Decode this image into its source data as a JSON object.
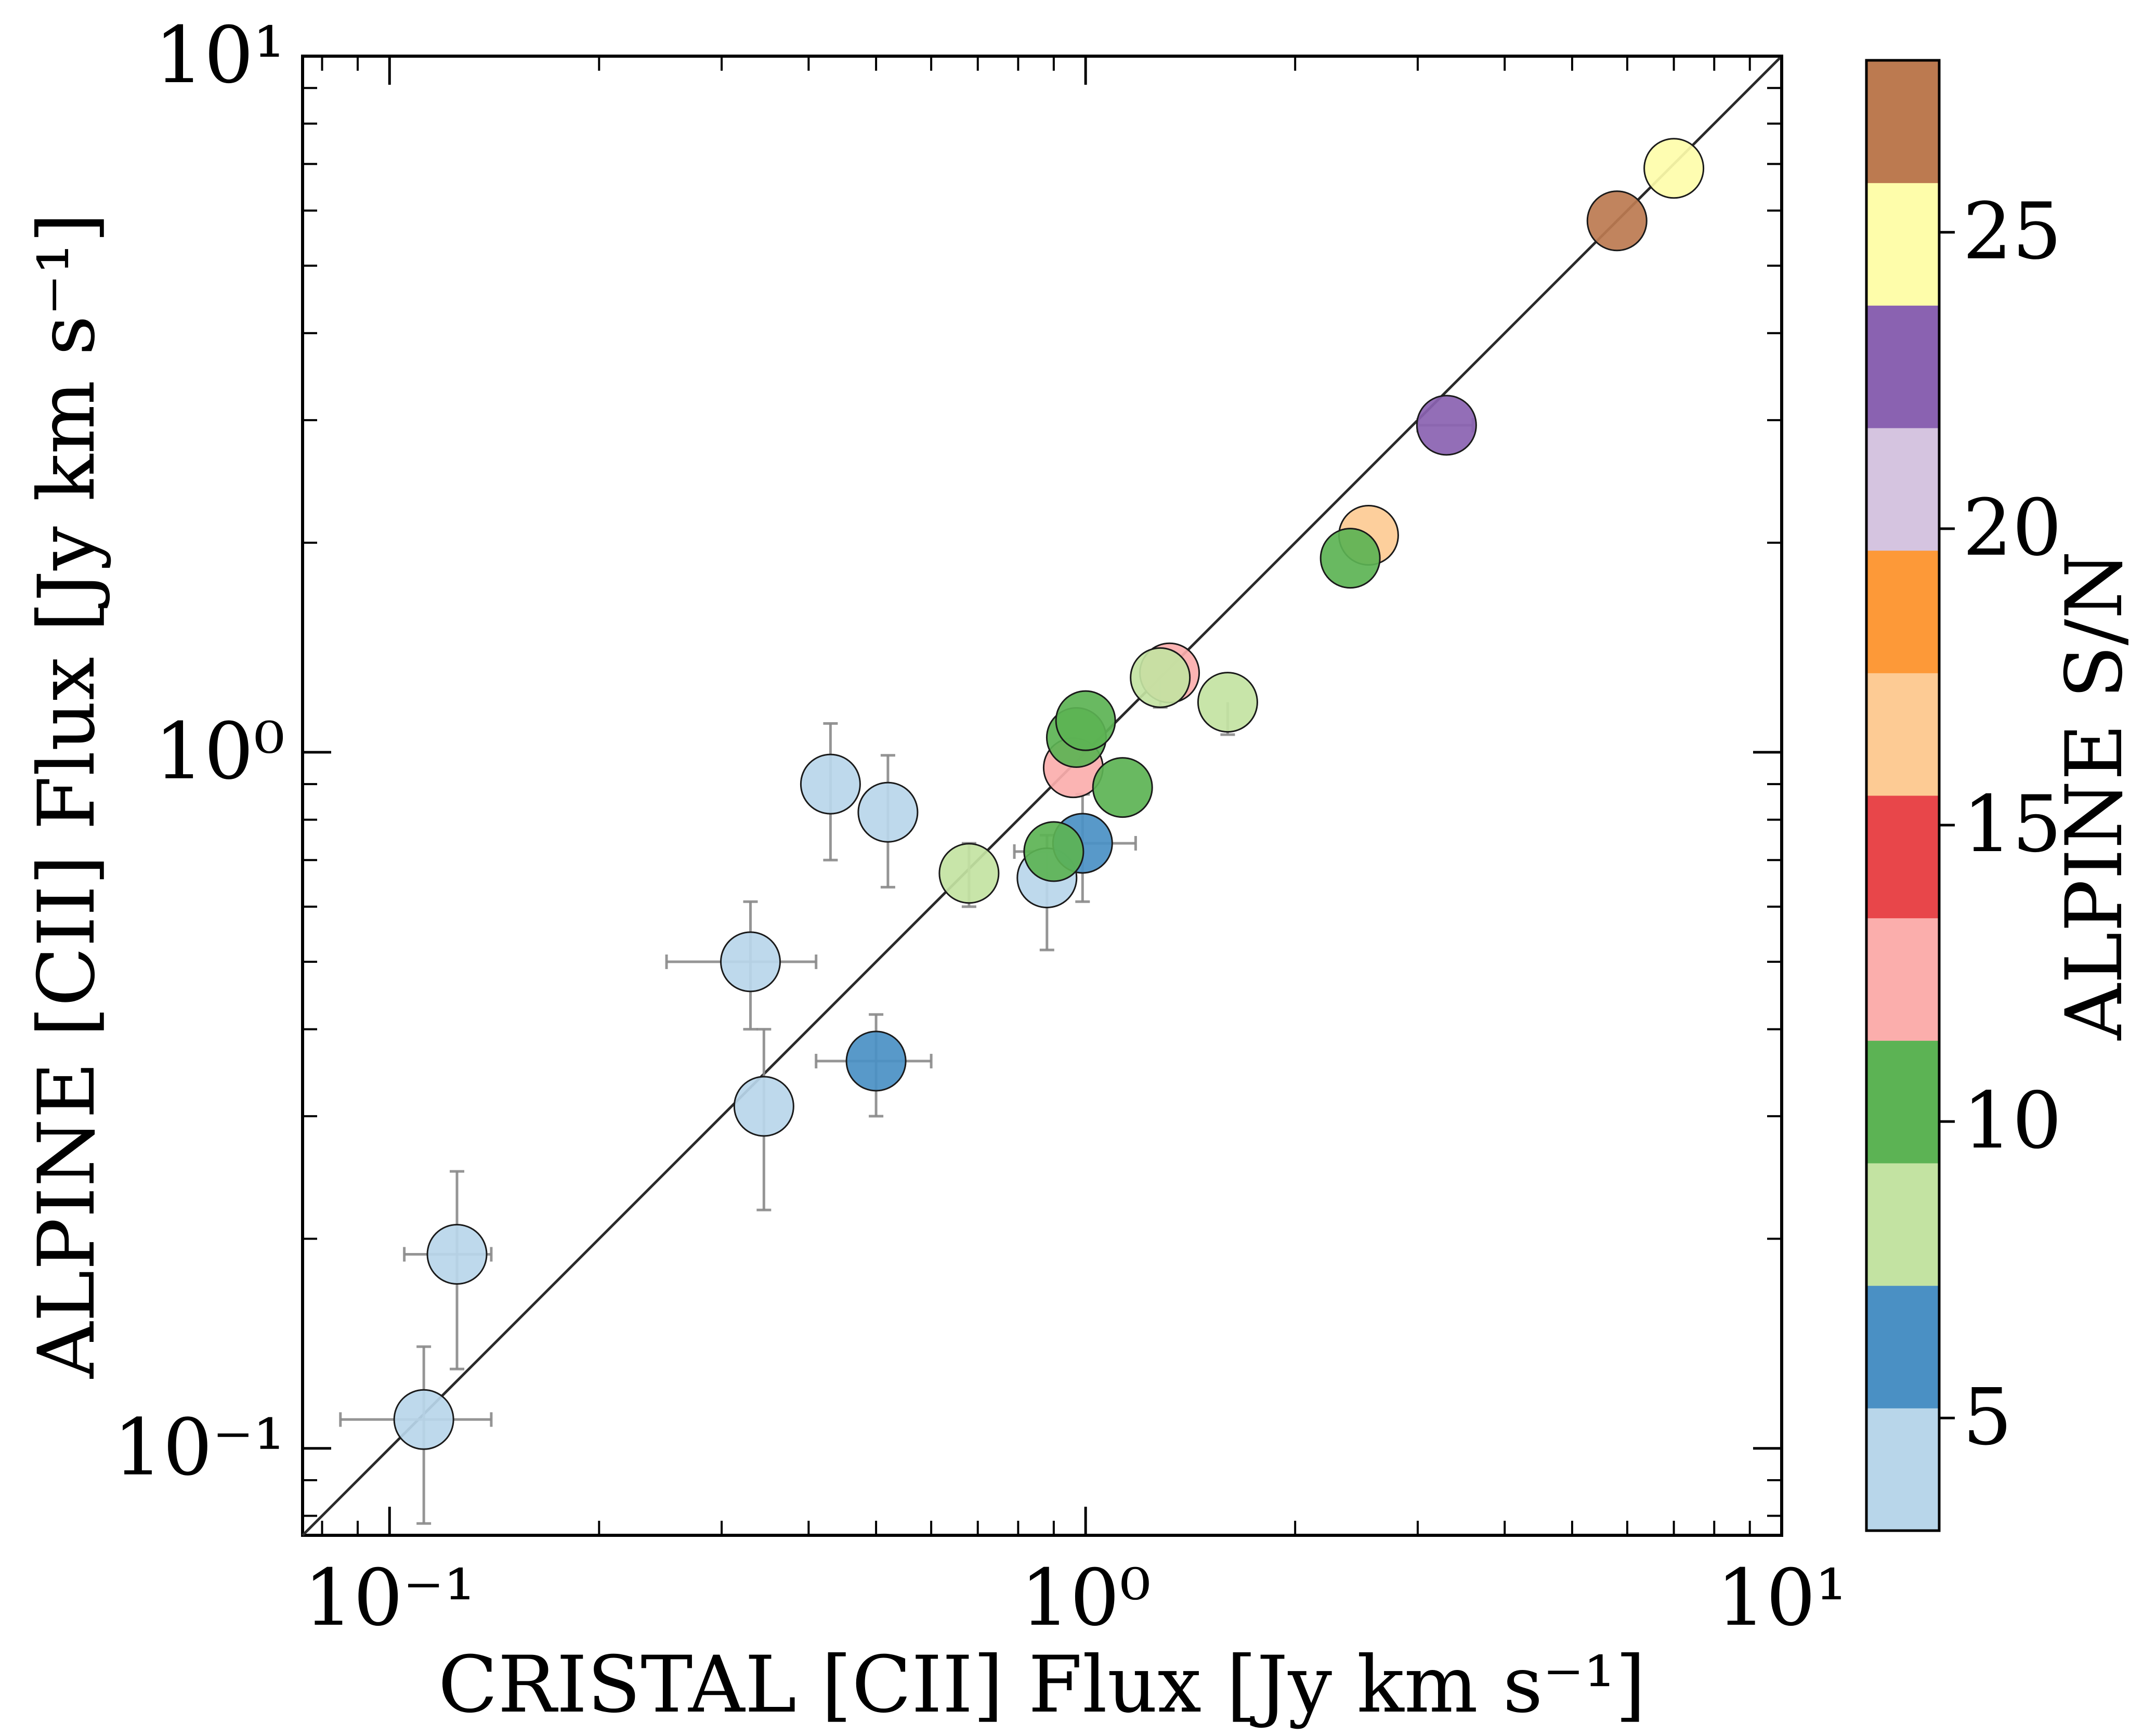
{
  "chart_data": {
    "type": "scatter",
    "xlabel": "CRISTAL [CII] Flux [Jy km s⁻¹]",
    "ylabel": "ALPINE [CII] Flux [Jy km s⁻¹]",
    "xscale": "log",
    "yscale": "log",
    "xlim": [
      0.075,
      10
    ],
    "ylim": [
      0.075,
      10
    ],
    "x_ticks": [
      {
        "value": 0.1,
        "label": "10⁻¹"
      },
      {
        "value": 1,
        "label": "10⁰"
      },
      {
        "value": 10,
        "label": "10¹"
      }
    ],
    "y_ticks": [
      {
        "value": 0.1,
        "label": "10⁻¹"
      },
      {
        "value": 1,
        "label": "10⁰"
      },
      {
        "value": 10,
        "label": "10¹"
      }
    ],
    "one_to_one_line": true,
    "grid": false,
    "colorbar": {
      "label": "ALPINE S/N",
      "range": [
        3.1,
        27.9
      ],
      "ticks": [
        5,
        10,
        15,
        20,
        25
      ],
      "tick_labels": [
        "5",
        "10",
        "15",
        "20",
        "25"
      ],
      "colors": [
        "#b8d6ea",
        "#4a90c4",
        "#c3e3a2",
        "#5cb354",
        "#fbaeac",
        "#e8464a",
        "#fdcb94",
        "#fd9938",
        "#d5c4e0",
        "#8a62b1",
        "#fefdaa",
        "#bc7a50"
      ]
    },
    "points": [
      {
        "x": 0.112,
        "y": 0.11,
        "xerr": [
          0.027,
          0.028
        ],
        "yerr": [
          0.032,
          0.03
        ],
        "sn": 4
      },
      {
        "x": 0.125,
        "y": 0.19,
        "xerr": [
          0.02,
          0.015
        ],
        "yerr": [
          0.06,
          0.06
        ],
        "sn": 4
      },
      {
        "x": 0.33,
        "y": 0.5,
        "xerr": [
          0.08,
          0.08
        ],
        "yerr": [
          0.1,
          0.11
        ],
        "sn": 4
      },
      {
        "x": 0.345,
        "y": 0.31,
        "xerr": [
          0.0,
          0.0
        ],
        "yerr": [
          0.09,
          0.09
        ],
        "sn": 4
      },
      {
        "x": 0.43,
        "y": 0.9,
        "xerr": [
          0.0,
          0.0
        ],
        "yerr": [
          0.2,
          0.2
        ],
        "sn": 4
      },
      {
        "x": 0.52,
        "y": 0.82,
        "xerr": [
          0.0,
          0.0
        ],
        "yerr": [
          0.18,
          0.17
        ],
        "sn": 4
      },
      {
        "x": 0.5,
        "y": 0.36,
        "xerr": [
          0.09,
          0.1
        ],
        "yerr": [
          0.06,
          0.06
        ],
        "sn": 6
      },
      {
        "x": 0.68,
        "y": 0.67,
        "xerr": [
          0.0,
          0.0
        ],
        "yerr": [
          0.07,
          0.07
        ],
        "sn": 8
      },
      {
        "x": 0.88,
        "y": 0.66,
        "xerr": [
          0.0,
          0.0
        ],
        "yerr": [
          0.14,
          0.1
        ],
        "sn": 4
      },
      {
        "x": 0.99,
        "y": 0.74,
        "xerr": [
          0.0,
          0.19
        ],
        "yerr": [
          0.13,
          0.13
        ],
        "sn": 6
      },
      {
        "x": 0.9,
        "y": 0.72,
        "xerr": [
          0.11,
          0.0
        ],
        "yerr": [
          0.0,
          0.0
        ],
        "sn": 10
      },
      {
        "x": 0.96,
        "y": 0.95,
        "xerr": [
          0.0,
          0.0
        ],
        "yerr": [
          0.0,
          0.0
        ],
        "sn": 12
      },
      {
        "x": 0.97,
        "y": 1.05,
        "xerr": [
          0.0,
          0.0
        ],
        "yerr": [
          0.0,
          0.0
        ],
        "sn": 10
      },
      {
        "x": 1.0,
        "y": 1.11,
        "xerr": [
          0.0,
          0.0
        ],
        "yerr": [
          0.0,
          0.0
        ],
        "sn": 10
      },
      {
        "x": 1.13,
        "y": 0.89,
        "xerr": [
          0.0,
          0.0
        ],
        "yerr": [
          0.0,
          0.0
        ],
        "sn": 10
      },
      {
        "x": 1.32,
        "y": 1.3,
        "xerr": [
          0.0,
          0.0
        ],
        "yerr": [
          0.0,
          0.0
        ],
        "sn": 12
      },
      {
        "x": 1.28,
        "y": 1.28,
        "xerr": [
          0.0,
          0.0
        ],
        "yerr": [
          0.12,
          0.0
        ],
        "sn": 8
      },
      {
        "x": 1.6,
        "y": 1.18,
        "xerr": [
          0.0,
          0.0
        ],
        "yerr": [
          0.12,
          0.0
        ],
        "sn": 8
      },
      {
        "x": 2.55,
        "y": 2.05,
        "xerr": [
          0.0,
          0.0
        ],
        "yerr": [
          0.0,
          0.0
        ],
        "sn": 16
      },
      {
        "x": 2.4,
        "y": 1.9,
        "xerr": [
          0.0,
          0.0
        ],
        "yerr": [
          0.0,
          0.0
        ],
        "sn": 10
      },
      {
        "x": 3.3,
        "y": 2.95,
        "xerr": [
          0.3,
          0.3
        ],
        "yerr": [
          0.0,
          0.0
        ],
        "sn": 22
      },
      {
        "x": 5.8,
        "y": 5.8,
        "xerr": [
          0.0,
          0.0
        ],
        "yerr": [
          0.0,
          0.0
        ],
        "sn": 27
      },
      {
        "x": 7.0,
        "y": 6.9,
        "xerr": [
          0.0,
          0.0
        ],
        "yerr": [
          0.0,
          0.0
        ],
        "sn": 25
      }
    ]
  }
}
